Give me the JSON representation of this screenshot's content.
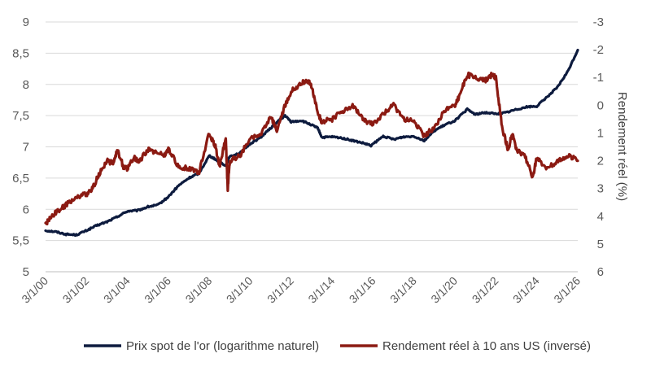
{
  "chart_data": {
    "type": "line",
    "title": "",
    "xlabel": "",
    "ylabel": "",
    "y2label": "Rendement réel (%)",
    "x_ticks": [
      "3/1/00",
      "3/1/02",
      "3/1/04",
      "3/1/06",
      "3/1/08",
      "3/1/10",
      "3/1/12",
      "3/1/14",
      "3/1/16",
      "3/1/18",
      "3/1/20",
      "3/1/22",
      "3/1/24",
      "3/1/26"
    ],
    "y_ticks": [
      "9",
      "8,5",
      "8",
      "7,5",
      "7",
      "6,5",
      "6",
      "5,5",
      "5"
    ],
    "y2_ticks": [
      "-3",
      "-2",
      "-1",
      "0",
      "1",
      "2",
      "3",
      "4",
      "5",
      "6"
    ],
    "ylim": [
      5,
      9
    ],
    "y2lim": [
      -3,
      6
    ],
    "y2_inverted": true,
    "grid": "horizontal",
    "legend_position": "bottom",
    "colors": {
      "gold": "#0d1b3e",
      "yield": "#8b1a12",
      "grid": "#d9d9d9",
      "axis": "#bfbfbf"
    },
    "series": [
      {
        "name": "Prix spot de l'or (logarithme naturel)",
        "axis": "left",
        "x": [
          2000,
          2000.5,
          2001,
          2001.5,
          2002,
          2002.5,
          2003,
          2003.5,
          2004,
          2004.5,
          2005,
          2005.5,
          2006,
          2006.5,
          2007,
          2007.5,
          2008,
          2008.3,
          2008.8,
          2009,
          2009.5,
          2010,
          2010.5,
          2011,
          2011.5,
          2011.7,
          2012,
          2012.5,
          2013,
          2013.3,
          2013.5,
          2014,
          2014.5,
          2015,
          2015.5,
          2015.9,
          2016.5,
          2017,
          2017.5,
          2018,
          2018.5,
          2019,
          2019.5,
          2020,
          2020.6,
          2021,
          2021.5,
          2022,
          2022.5,
          2023,
          2023.5,
          2024,
          2024.5,
          2025,
          2025.5,
          2026
        ],
        "values": [
          5.66,
          5.64,
          5.6,
          5.59,
          5.66,
          5.74,
          5.8,
          5.88,
          5.97,
          5.98,
          6.04,
          6.07,
          6.2,
          6.38,
          6.5,
          6.58,
          6.86,
          6.8,
          6.7,
          6.85,
          6.9,
          7.05,
          7.15,
          7.3,
          7.45,
          7.5,
          7.4,
          7.42,
          7.35,
          7.3,
          7.15,
          7.16,
          7.14,
          7.1,
          7.06,
          7.02,
          7.17,
          7.12,
          7.16,
          7.17,
          7.1,
          7.26,
          7.35,
          7.42,
          7.6,
          7.52,
          7.55,
          7.53,
          7.55,
          7.6,
          7.64,
          7.65,
          7.8,
          7.95,
          8.2,
          8.55
        ]
      },
      {
        "name": "Rendement réel à 10 ans US (inversé)",
        "axis": "right",
        "x": [
          2000,
          2000.3,
          2000.6,
          2001,
          2001.5,
          2002,
          2002.3,
          2002.6,
          2003,
          2003.3,
          2003.5,
          2003.8,
          2004,
          2004.3,
          2004.6,
          2005,
          2005.4,
          2005.8,
          2006,
          2006.5,
          2007,
          2007.5,
          2008,
          2008.3,
          2008.5,
          2008.8,
          2008.9,
          2009,
          2009.5,
          2010,
          2010.5,
          2011,
          2011.3,
          2011.7,
          2012,
          2012.5,
          2012.8,
          2013,
          2013.3,
          2013.5,
          2014,
          2014.5,
          2015,
          2015.5,
          2016,
          2016.5,
          2017,
          2017.5,
          2018,
          2018.5,
          2019,
          2019.5,
          2020,
          2020.2,
          2020.6,
          2021,
          2021.5,
          2021.8,
          2022,
          2022.3,
          2022.6,
          2022.8,
          2023,
          2023.4,
          2023.8,
          2024,
          2024.5,
          2025,
          2025.5,
          2026
        ],
        "values": [
          4.3,
          4.0,
          3.8,
          3.6,
          3.3,
          3.2,
          3.0,
          2.5,
          2.0,
          2.1,
          1.6,
          2.2,
          2.3,
          1.9,
          2.0,
          1.6,
          1.7,
          1.8,
          1.6,
          2.2,
          2.3,
          2.4,
          1.0,
          1.5,
          2.2,
          1.2,
          3.0,
          2.0,
          1.8,
          1.2,
          1.1,
          0.4,
          0.9,
          0.0,
          -0.5,
          -0.8,
          -0.9,
          -0.7,
          0.3,
          0.6,
          0.5,
          0.2,
          0.0,
          0.5,
          0.7,
          0.3,
          0.0,
          0.5,
          0.6,
          1.1,
          0.8,
          0.2,
          0.0,
          -0.3,
          -1.1,
          -1.0,
          -0.9,
          -1.1,
          -1.0,
          0.8,
          1.6,
          1.0,
          1.6,
          1.8,
          2.6,
          1.9,
          2.3,
          2.0,
          1.8,
          2.0
        ]
      }
    ]
  }
}
